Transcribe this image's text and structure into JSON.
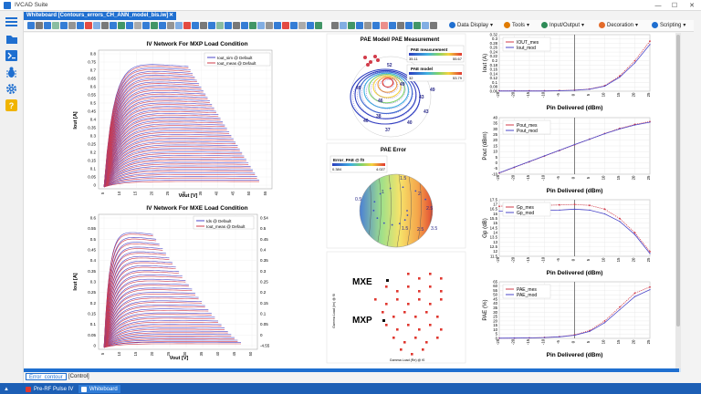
{
  "window": {
    "title": "IVCAD Suite",
    "minimize": "—",
    "maximize": "☐",
    "close": "✕"
  },
  "document_tab": {
    "label": "Whiteboard [Contours_errors_CH_ANN_model_bis.iw]",
    "close": "✕"
  },
  "toolbar_menus": {
    "data_display": "Data Display",
    "tools": "Tools",
    "input_output": "Input/Output",
    "decoration": "Decoration",
    "scripting": "Scripting"
  },
  "sidebar_icons": [
    "menu-icon",
    "folder-icon",
    "terminal-icon",
    "bug-icon",
    "gear-icon",
    "help-icon"
  ],
  "panels": {
    "iv_mxp": {
      "title": "IV Network For MXP Load Condition",
      "xlabel": "Vout [V]",
      "ylabel": "Iout [A]",
      "legend": [
        "Iout_sim @ Default",
        "Iout_meas @ Default"
      ],
      "y_ticks": [
        "0.8",
        "0.75",
        "0.7",
        "0.65",
        "0.6",
        "0.55",
        "0.5",
        "0.45",
        "0.4",
        "0.35",
        "0.3",
        "0.25",
        "0.2",
        "0.15",
        "0.1",
        "0.05",
        "0"
      ],
      "x_ticks": [
        "5",
        "10",
        "15",
        "20",
        "25",
        "30",
        "35",
        "40",
        "45",
        "50",
        "55"
      ]
    },
    "iv_mxe": {
      "title": "IV Network For MXE Load Condition",
      "xlabel": "Vout [V]",
      "ylabel": "Iout [A]",
      "legend": [
        "Ids @ Default",
        "Iout_meas @ Default"
      ],
      "y_ticks": [
        "0.6",
        "0.55",
        "0.5",
        "0.45",
        "0.4",
        "0.35",
        "0.3",
        "0.25",
        "0.2",
        "0.15",
        "0.1",
        "0.05",
        "0"
      ],
      "y2_ticks": [
        "0.54",
        "0.5",
        "0.45",
        "0.4",
        "0.35",
        "0.3",
        "0.25",
        "0.2",
        "0.15",
        "0.1",
        "0.05",
        "0",
        "-4.55"
      ],
      "x_ticks": [
        "5",
        "10",
        "15",
        "20",
        "25",
        "30",
        "35",
        "40",
        "45",
        "50"
      ]
    },
    "pae_model": {
      "title": "PAE Model/ PAE Measurement",
      "legend1_title": "PAE measurement",
      "legend1_min": "35.11",
      "legend1_max": "55.67",
      "legend2_title": "PAE model",
      "legend2_min": "32",
      "legend2_max": "53.79",
      "contour_labels": [
        "52",
        "49",
        "46",
        "43",
        "40",
        "37",
        "38",
        "40",
        "43",
        "49",
        "49"
      ]
    },
    "pae_error": {
      "title": "PAE Error",
      "legend_title": "Error_PAE @ f0",
      "legend_min": "0.384",
      "legend_max": "4.027",
      "contour_labels": [
        "0.5",
        "1",
        "1.5",
        "2",
        "2.5",
        "1.5",
        "2.5",
        "3.5"
      ]
    },
    "smith_loads": {
      "label_mxe": "MXE",
      "label_mxp": "MXP",
      "xlabel": "Gamma Load (Re) @ f0",
      "ylabel": "Gamma Load (Im) @ f0"
    },
    "charts": [
      {
        "ylabel": "Iout (A)",
        "xlabel": "Pin Delivered (dBm)",
        "legend": [
          "IOUT_mes",
          "Iout_mod"
        ],
        "y_ticks": [
          "0.32",
          "0.3",
          "0.28",
          "0.26",
          "0.24",
          "0.22",
          "0.2",
          "0.18",
          "0.16",
          "0.14",
          "0.12",
          "0.1",
          "0.08",
          "0.06"
        ]
      },
      {
        "ylabel": "Pout (dBm)",
        "xlabel": "Pin Delivered (dBm)",
        "legend": [
          "Pout_mes",
          "Pout_mod"
        ],
        "y_ticks": [
          "40",
          "35",
          "30",
          "25",
          "20",
          "15",
          "10",
          "5",
          "0",
          "-5",
          "-10"
        ]
      },
      {
        "ylabel": "Gp (dB)",
        "xlabel": "Pin Delivered (dBm)",
        "legend": [
          "Gp_mes",
          "Gp_mod"
        ],
        "y_ticks": [
          "17.5",
          "17",
          "16.5",
          "16",
          "15.5",
          "15",
          "14.5",
          "14",
          "13.5",
          "13",
          "12.5",
          "12",
          "11.5"
        ]
      },
      {
        "ylabel": "PAE (%)",
        "xlabel": "Pin Delivered (dBm)",
        "legend": [
          "PAE_mes",
          "PAE_mod"
        ],
        "y_ticks": [
          "65",
          "60",
          "55",
          "50",
          "45",
          "40",
          "35",
          "30",
          "25",
          "20",
          "15",
          "10",
          "5",
          "0"
        ]
      }
    ],
    "chart_x_ticks": [
      "-25",
      "-20",
      "-15",
      "-10",
      "-5",
      "0",
      "5",
      "10",
      "15",
      "20",
      "25"
    ]
  },
  "bottom_tabs": [
    "Error_contour",
    "[Control]"
  ],
  "status_bar": [
    "Pre-RF Pulse IV",
    "Whiteboard"
  ],
  "colors": {
    "accent": "#1f6fd0",
    "status_bar": "#1d5fb5",
    "sim": "#4b47c9",
    "meas": "#d23b4a"
  },
  "chart_data": [
    {
      "type": "line",
      "title": "",
      "xlabel": "Pin Delivered (dBm)",
      "ylabel": "Iout (A)",
      "ylim": [
        0.06,
        0.32
      ],
      "x": [
        -25,
        -20,
        -15,
        -10,
        -5,
        0,
        5,
        10,
        15,
        20,
        25
      ],
      "series": [
        {
          "name": "IOUT_mes",
          "values": [
            0.062,
            0.062,
            0.062,
            0.062,
            0.063,
            0.065,
            0.07,
            0.085,
            0.13,
            0.2,
            0.29
          ]
        },
        {
          "name": "Iout_mod",
          "values": [
            0.061,
            0.061,
            0.061,
            0.061,
            0.062,
            0.064,
            0.069,
            0.083,
            0.125,
            0.19,
            0.275
          ]
        }
      ]
    },
    {
      "type": "line",
      "title": "",
      "xlabel": "Pin Delivered (dBm)",
      "ylabel": "Pout (dBm)",
      "ylim": [
        -10,
        40
      ],
      "x": [
        -25,
        -20,
        -15,
        -10,
        -5,
        0,
        5,
        10,
        15,
        20,
        25
      ],
      "series": [
        {
          "name": "Pout_mes",
          "values": [
            -9,
            -4,
            1,
            6,
            11,
            16,
            21,
            26,
            30.5,
            34,
            36.5
          ]
        },
        {
          "name": "Pout_mod",
          "values": [
            -8.8,
            -3.8,
            1.2,
            6.2,
            11.2,
            16.2,
            21,
            25.8,
            30,
            33.5,
            36
          ]
        }
      ]
    },
    {
      "type": "line",
      "title": "",
      "xlabel": "Pin Delivered (dBm)",
      "ylabel": "Gp (dB)",
      "ylim": [
        11.5,
        17.5
      ],
      "x": [
        -25,
        -20,
        -15,
        -10,
        -5,
        0,
        5,
        10,
        15,
        20,
        25
      ],
      "series": [
        {
          "name": "Gp_mes",
          "values": [
            16.8,
            16.9,
            16.9,
            16.9,
            16.95,
            17.0,
            16.9,
            16.5,
            15.5,
            14.0,
            12.0
          ]
        },
        {
          "name": "Gp_mod",
          "values": [
            16.3,
            16.3,
            16.3,
            16.35,
            16.4,
            16.5,
            16.4,
            16.0,
            15.2,
            13.8,
            11.8
          ]
        }
      ]
    },
    {
      "type": "line",
      "title": "",
      "xlabel": "Pin Delivered (dBm)",
      "ylabel": "PAE (%)",
      "ylim": [
        0,
        65
      ],
      "x": [
        -25,
        -20,
        -15,
        -10,
        -5,
        0,
        5,
        10,
        15,
        20,
        25
      ],
      "series": [
        {
          "name": "PAE_mes",
          "values": [
            0.2,
            0.3,
            0.5,
            1,
            2,
            4,
            9,
            20,
            36,
            52,
            59
          ]
        },
        {
          "name": "PAE_mod",
          "values": [
            0.2,
            0.3,
            0.5,
            0.9,
            1.8,
            3.6,
            8,
            18,
            33,
            48,
            56
          ]
        }
      ]
    }
  ]
}
